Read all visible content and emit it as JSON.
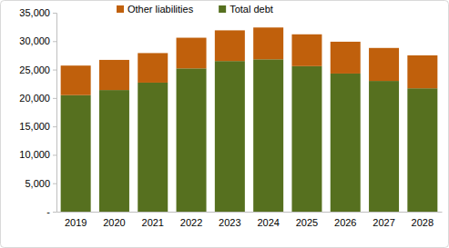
{
  "chart_data": {
    "type": "bar",
    "stacked": true,
    "legend": "top",
    "grid": false,
    "categories": [
      "2019",
      "2020",
      "2021",
      "2022",
      "2023",
      "2024",
      "2025",
      "2026",
      "2027",
      "2028"
    ],
    "series": [
      {
        "name": "Total debt",
        "color": "#56701f",
        "values": [
          20500,
          21400,
          22700,
          25200,
          26500,
          26800,
          25600,
          24300,
          23000,
          21700
        ]
      },
      {
        "name": "Other liabilities",
        "color": "#c0600c",
        "values": [
          5200,
          5300,
          5200,
          5400,
          5400,
          5600,
          5600,
          5600,
          5800,
          5800
        ]
      }
    ],
    "ylim": [
      0,
      35000
    ],
    "yticks": [
      {
        "value": 0,
        "label": "-"
      },
      {
        "value": 5000,
        "label": "5,000"
      },
      {
        "value": 10000,
        "label": "10,000"
      },
      {
        "value": 15000,
        "label": "15,000"
      },
      {
        "value": 20000,
        "label": "20,000"
      },
      {
        "value": 25000,
        "label": "25,000"
      },
      {
        "value": 30000,
        "label": "30,000"
      },
      {
        "value": 35000,
        "label": "35,000"
      }
    ]
  }
}
